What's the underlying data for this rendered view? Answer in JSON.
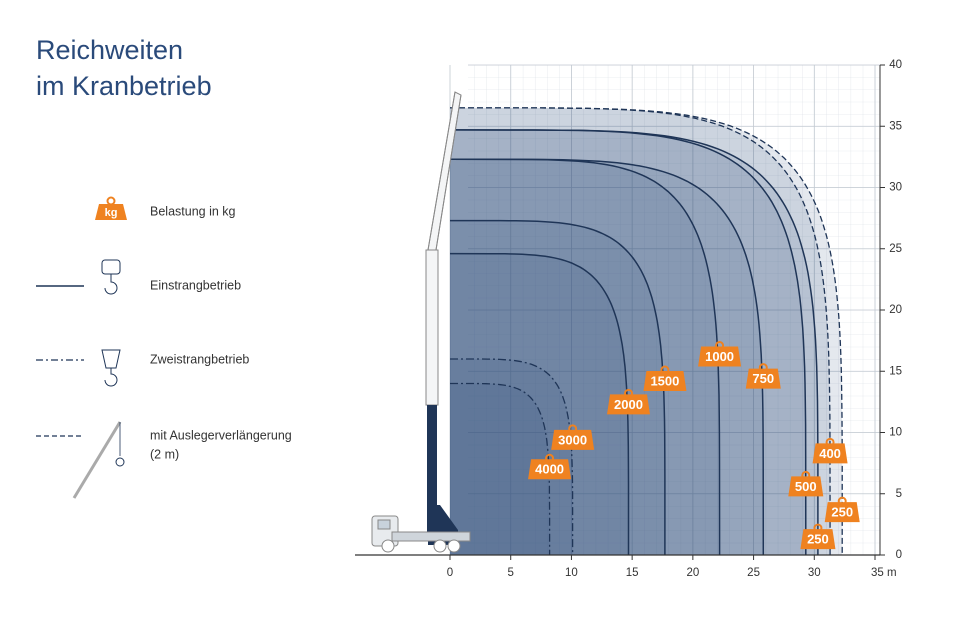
{
  "chart_data": {
    "type": "reach",
    "title_lines": [
      "Reichweiten",
      "im Kranbetrieb"
    ],
    "legend": {
      "load_tag": "kg",
      "load": "Belastung in kg",
      "single": "Einstrangbetrieb",
      "double": "Zweistrangbetrieb",
      "extension_lines": [
        "mit Auslegerverlängerung",
        "(2 m)"
      ]
    },
    "xlim": [
      0,
      35
    ],
    "ylim": [
      0,
      40
    ],
    "xticks": [
      0,
      5,
      10,
      15,
      20,
      25,
      30,
      {
        "value": 35,
        "label": "35 m"
      }
    ],
    "yticks": [
      0,
      5,
      10,
      15,
      20,
      25,
      30,
      35,
      40
    ],
    "color": "#1f3557",
    "tag_color": "#ef8220",
    "series": [
      {
        "name": "250",
        "style": "dashed",
        "height": 36.5,
        "reach": 32.3
      },
      {
        "name": "400",
        "style": "dashed",
        "height": 36.5,
        "reach": 31.3
      },
      {
        "name": "250",
        "style": "solid",
        "height": 34.7,
        "reach": 30.3
      },
      {
        "name": "500",
        "style": "solid",
        "height": 34.7,
        "reach": 29.3
      },
      {
        "name": "750",
        "style": "solid",
        "height": 32.3,
        "reach": 25.8
      },
      {
        "name": "1000",
        "style": "solid",
        "height": 32.3,
        "reach": 22.2
      },
      {
        "name": "1500",
        "style": "solid",
        "height": 27.3,
        "reach": 17.7
      },
      {
        "name": "2000",
        "style": "solid",
        "height": 24.6,
        "reach": 14.7
      },
      {
        "name": "3000",
        "style": "dashdot",
        "height": 16,
        "reach": 10.1
      },
      {
        "name": "4000",
        "style": "dashdot",
        "height": 14,
        "reach": 8.2
      }
    ]
  }
}
